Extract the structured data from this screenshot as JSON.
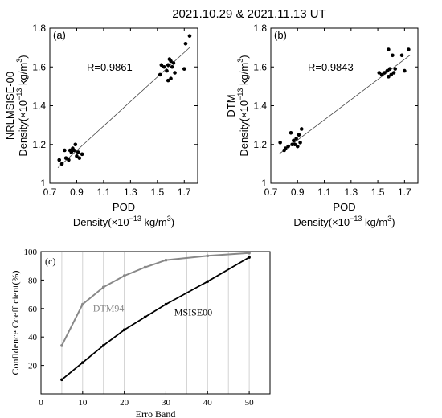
{
  "figure_title": "2021.10.29 & 2021.11.13 UT",
  "chart_data": [
    {
      "type": "scatter",
      "panel_label": "(a)",
      "annotation": "R=0.9861",
      "ylabel_line1": "NRLMSISE-00",
      "ylabel_line2": "Density(×10",
      "ylabel_exp": "−13",
      "ylabel_unit": " kg/m",
      "ylabel_pow": "3",
      "ylabel_close": ")",
      "xlabel_line1": "POD",
      "xlabel_line2": "Density(×10",
      "xlabel_exp": "−13",
      "xlabel_unit": " kg/m",
      "xlabel_pow": "3",
      "xlabel_close": ")",
      "xlim": [
        0.7,
        1.8
      ],
      "ylim": [
        1.0,
        1.8
      ],
      "xticks": [
        "0.7",
        "0.9",
        "1.1",
        "1.3",
        "1.5",
        "1.7"
      ],
      "xtick_values": [
        0.7,
        0.9,
        1.1,
        1.3,
        1.5,
        1.7
      ],
      "yticks": [
        "1",
        "1.2",
        "1.4",
        "1.6",
        "1.8"
      ],
      "ytick_values": [
        1.0,
        1.2,
        1.4,
        1.6,
        1.8
      ],
      "fit_line": {
        "x": [
          0.76,
          1.74
        ],
        "y": [
          1.08,
          1.7
        ]
      },
      "x": [
        0.77,
        0.79,
        0.81,
        0.82,
        0.84,
        0.85,
        0.86,
        0.87,
        0.88,
        0.89,
        0.9,
        0.91,
        0.92,
        0.94,
        1.52,
        1.53,
        1.55,
        1.57,
        1.58,
        1.58,
        1.59,
        1.6,
        1.6,
        1.61,
        1.62,
        1.63,
        1.7,
        1.71,
        1.74
      ],
      "y": [
        1.12,
        1.1,
        1.17,
        1.13,
        1.12,
        1.17,
        1.16,
        1.18,
        1.17,
        1.2,
        1.14,
        1.16,
        1.13,
        1.15,
        1.56,
        1.61,
        1.6,
        1.58,
        1.53,
        1.61,
        1.64,
        1.54,
        1.63,
        1.6,
        1.62,
        1.57,
        1.59,
        1.72,
        1.76
      ]
    },
    {
      "type": "scatter",
      "panel_label": "(b)",
      "annotation": "R=0.9843",
      "ylabel_line1": "DTM",
      "ylabel_line2": "Density(×10",
      "ylabel_exp": "−13",
      "ylabel_unit": " kg/m",
      "ylabel_pow": "3",
      "ylabel_close": ")",
      "xlabel_line1": "POD",
      "xlabel_line2": "Density(×10",
      "xlabel_exp": "−13",
      "xlabel_unit": " kg/m",
      "xlabel_pow": "3",
      "xlabel_close": ")",
      "xlim": [
        0.7,
        1.8
      ],
      "ylim": [
        1.0,
        1.8
      ],
      "xticks": [
        "0.7",
        "0.9",
        "1.1",
        "1.3",
        "1.5",
        "1.7"
      ],
      "xtick_values": [
        0.7,
        0.9,
        1.1,
        1.3,
        1.5,
        1.7
      ],
      "yticks": [
        "1",
        "1.2",
        "1.4",
        "1.6",
        "1.8"
      ],
      "ytick_values": [
        1.0,
        1.2,
        1.4,
        1.6,
        1.8
      ],
      "fit_line": {
        "x": [
          0.76,
          1.74
        ],
        "y": [
          1.15,
          1.66
        ]
      },
      "x": [
        0.77,
        0.8,
        0.81,
        0.83,
        0.85,
        0.86,
        0.87,
        0.88,
        0.89,
        0.9,
        0.91,
        0.92,
        0.93,
        1.51,
        1.53,
        1.55,
        1.57,
        1.58,
        1.58,
        1.59,
        1.6,
        1.61,
        1.62,
        1.63,
        1.68,
        1.7,
        1.73
      ],
      "y": [
        1.21,
        1.17,
        1.18,
        1.19,
        1.26,
        1.2,
        1.22,
        1.2,
        1.23,
        1.19,
        1.25,
        1.21,
        1.28,
        1.57,
        1.56,
        1.57,
        1.58,
        1.55,
        1.69,
        1.59,
        1.56,
        1.66,
        1.57,
        1.59,
        1.66,
        1.58,
        1.69
      ]
    },
    {
      "type": "line",
      "panel_label": "(c)",
      "xlabel": "Erro Band",
      "ylabel": "Confidence Coefficient(%)",
      "xlim": [
        0,
        55
      ],
      "ylim": [
        0,
        100
      ],
      "xticks": [
        "0",
        "10",
        "20",
        "30",
        "40",
        "50"
      ],
      "xtick_values": [
        0,
        10,
        20,
        30,
        40,
        50
      ],
      "yticks": [
        "20",
        "40",
        "60",
        "80",
        "100"
      ],
      "ytick_values": [
        20,
        40,
        60,
        80,
        100
      ],
      "grid_x": [
        5,
        10,
        15,
        20,
        25,
        30,
        35,
        40,
        45,
        50
      ],
      "series": [
        {
          "name": "DTM94",
          "color": "#888888",
          "x": [
            5,
            10,
            15,
            20,
            25,
            30,
            40,
            50
          ],
          "y": [
            34,
            63,
            75,
            83,
            89,
            94,
            97,
            99
          ]
        },
        {
          "name": "MSISE00",
          "color": "#000000",
          "x": [
            5,
            10,
            15,
            20,
            25,
            30,
            40,
            50
          ],
          "y": [
            10,
            22,
            34,
            45,
            54,
            63,
            79,
            96
          ]
        }
      ]
    }
  ]
}
